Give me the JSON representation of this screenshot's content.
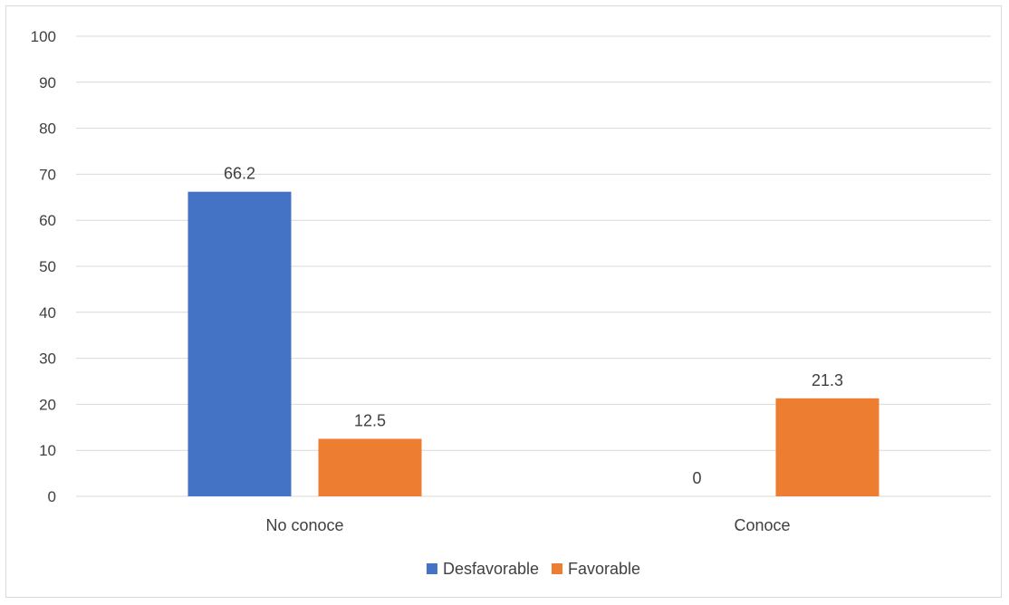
{
  "chart_data": {
    "type": "bar",
    "title": "",
    "xlabel": "",
    "ylabel": "",
    "categories": [
      "No conoce",
      "Conoce"
    ],
    "series": [
      {
        "name": "Desfavorable",
        "values": [
          66.2,
          0
        ],
        "labels": [
          "66.2",
          "0"
        ],
        "color": "#4472c4"
      },
      {
        "name": "Favorable",
        "values": [
          12.5,
          21.3
        ],
        "labels": [
          "12.5",
          "21.3"
        ],
        "color": "#ed7d31"
      }
    ],
    "ylim": [
      0,
      100
    ],
    "yticks": [
      "0",
      "10",
      "20",
      "30",
      "40",
      "50",
      "60",
      "70",
      "80",
      "90",
      "100"
    ],
    "grid": true,
    "legend_position": "bottom",
    "colors": {
      "gridline": "#d9d9d9",
      "text": "#404040",
      "border": "#d9d9d9"
    }
  }
}
